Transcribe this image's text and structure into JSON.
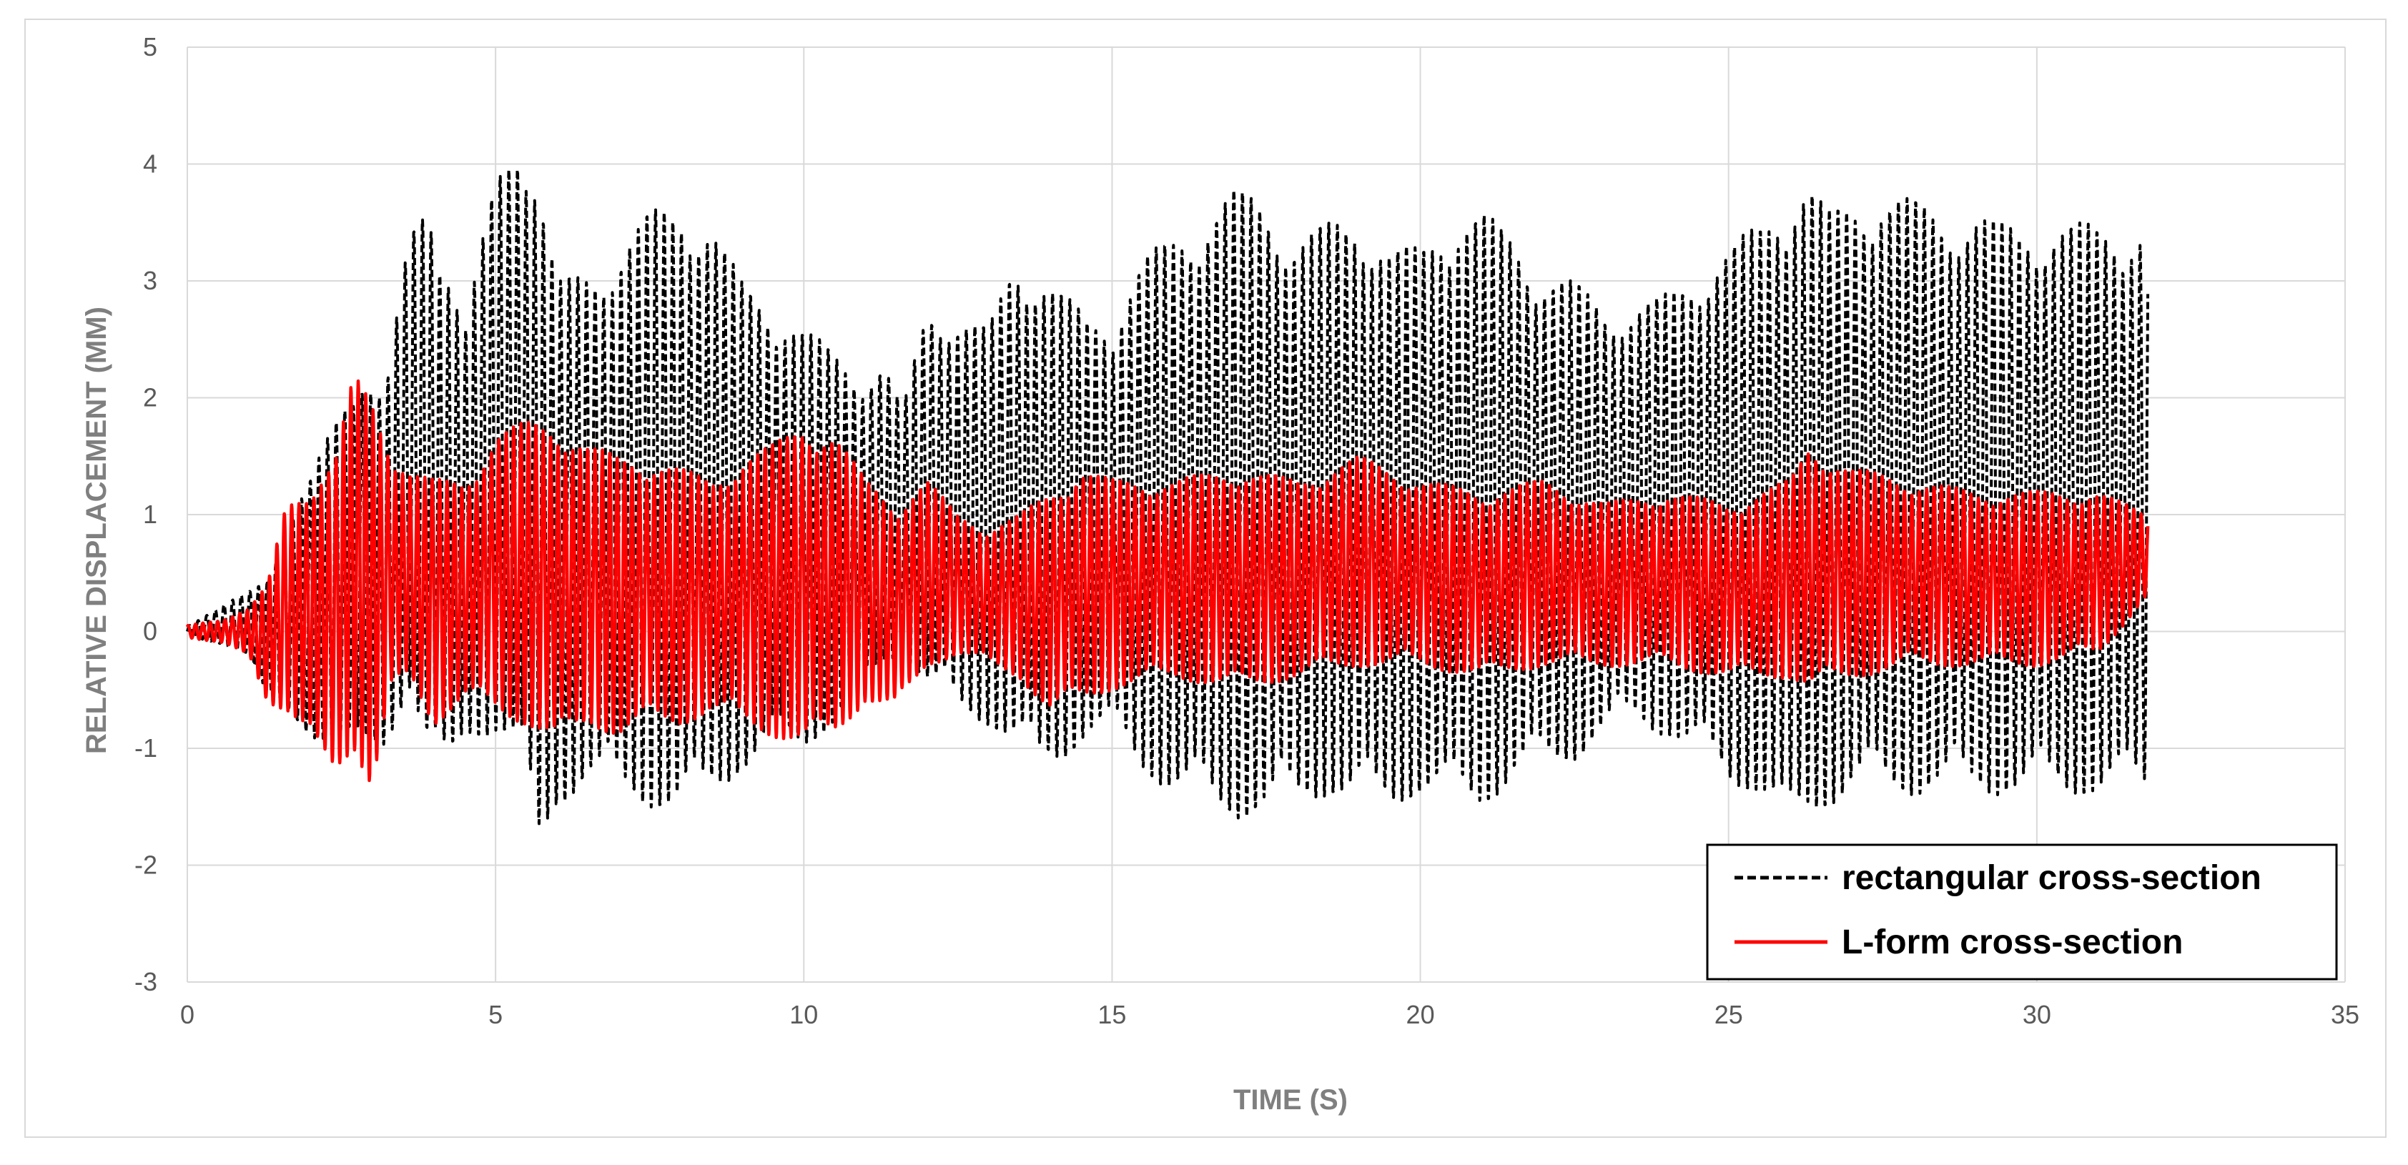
{
  "chart_data": {
    "type": "line",
    "title": "",
    "xlabel": "TIME (S)",
    "ylabel": "RELATIVE DISPLACEMENT (MM)",
    "xlim": [
      0,
      35
    ],
    "ylim": [
      -3,
      5
    ],
    "xticks": [
      0,
      5,
      10,
      15,
      20,
      25,
      30,
      35
    ],
    "yticks": [
      -3,
      -2,
      -1,
      0,
      1,
      2,
      3,
      4,
      5
    ],
    "grid": true,
    "legend_position": "bottom-right",
    "series": [
      {
        "name": "rectangular cross-section",
        "color": "#000000",
        "style": "dashed",
        "period_s": 0.14,
        "envelope": {
          "t": [
            0,
            0.5,
            1.0,
            1.3,
            1.6,
            2.0,
            2.5,
            2.8,
            3.2,
            3.6,
            3.9,
            4.2,
            4.5,
            5.0,
            5.4,
            5.7,
            6.0,
            6.5,
            7.0,
            7.5,
            8.0,
            8.5,
            9.0,
            9.5,
            10.0,
            10.5,
            11.0,
            11.3,
            11.6,
            12.0,
            12.5,
            13.0,
            13.4,
            13.8,
            14.2,
            14.6,
            15.0,
            15.5,
            16.0,
            16.5,
            17.0,
            17.5,
            18.0,
            18.5,
            19.0,
            19.5,
            20.0,
            20.5,
            21.0,
            21.5,
            22.0,
            22.5,
            23.0,
            23.5,
            24.0,
            24.5,
            25.0,
            25.5,
            26.0,
            26.3,
            26.6,
            27.0,
            27.5,
            28.0,
            28.5,
            29.0,
            29.5,
            30.0,
            30.5,
            31.0,
            31.5,
            31.8
          ],
          "max": [
            0.05,
            0.2,
            0.35,
            0.5,
            0.9,
            1.3,
            2.0,
            2.3,
            2.0,
            3.4,
            3.8,
            3.3,
            2.6,
            3.9,
            4.4,
            3.9,
            3.0,
            3.1,
            3.3,
            3.6,
            3.7,
            3.5,
            3.0,
            2.8,
            2.6,
            2.4,
            2.2,
            2.3,
            1.9,
            2.8,
            2.7,
            2.6,
            3.2,
            3.1,
            2.9,
            2.7,
            2.7,
            3.2,
            3.4,
            3.6,
            3.8,
            3.7,
            3.4,
            3.5,
            3.6,
            3.3,
            3.3,
            3.6,
            3.6,
            3.4,
            3.1,
            3.0,
            2.8,
            2.8,
            2.9,
            3.1,
            3.3,
            3.5,
            3.8,
            3.9,
            3.6,
            3.7,
            3.8,
            3.7,
            3.6,
            3.6,
            3.5,
            3.5,
            3.5,
            3.5,
            3.5,
            3.5
          ],
          "min": [
            -0.05,
            -0.1,
            -0.2,
            -0.6,
            -0.7,
            -0.9,
            -1.0,
            -1.1,
            -1.0,
            -0.5,
            -1.1,
            -1.3,
            -0.9,
            -0.9,
            -1.2,
            -1.9,
            -1.5,
            -1.3,
            -1.4,
            -1.5,
            -1.6,
            -1.4,
            -1.2,
            -1.0,
            -1.0,
            -0.8,
            -0.5,
            -0.3,
            -0.2,
            -0.5,
            -0.7,
            -0.8,
            -1.0,
            -1.2,
            -1.1,
            -0.9,
            -0.9,
            -1.2,
            -1.4,
            -1.5,
            -1.6,
            -1.6,
            -1.5,
            -1.4,
            -1.5,
            -1.5,
            -1.4,
            -1.5,
            -1.5,
            -1.3,
            -1.2,
            -1.1,
            -0.9,
            -0.8,
            -0.9,
            -1.1,
            -1.3,
            -1.4,
            -1.8,
            -1.6,
            -1.5,
            -1.4,
            -1.4,
            -1.4,
            -1.4,
            -1.4,
            -1.4,
            -1.4,
            -1.4,
            -1.4,
            -1.4,
            -1.4
          ]
        }
      },
      {
        "name": "L-form cross-section",
        "color": "#ff0000",
        "style": "solid",
        "period_s": 0.12,
        "envelope": {
          "t": [
            0,
            0.5,
            1.0,
            1.3,
            1.6,
            2.0,
            2.4,
            2.7,
            3.0,
            3.3,
            3.6,
            4.0,
            4.5,
            5.0,
            5.5,
            6.0,
            6.5,
            7.0,
            7.5,
            8.0,
            8.5,
            9.0,
            9.5,
            10.0,
            10.5,
            11.0,
            11.5,
            12.0,
            12.5,
            13.0,
            13.5,
            14.0,
            14.5,
            15.0,
            16.0,
            17.0,
            18.0,
            19.0,
            20.0,
            21.0,
            22.0,
            23.0,
            24.0,
            25.0,
            26.0,
            26.3,
            27.0,
            28.0,
            29.0,
            30.0,
            31.0,
            31.8
          ],
          "max": [
            0.05,
            0.1,
            0.2,
            0.4,
            1.1,
            1.3,
            1.5,
            2.2,
            2.0,
            1.6,
            1.4,
            1.3,
            1.3,
            1.7,
            1.8,
            1.8,
            1.6,
            1.5,
            1.5,
            1.4,
            1.3,
            1.5,
            1.6,
            1.8,
            1.7,
            1.3,
            1.1,
            1.3,
            1.0,
            0.9,
            1.0,
            1.2,
            1.4,
            1.3,
            1.3,
            1.4,
            1.3,
            1.5,
            1.3,
            1.2,
            1.3,
            1.1,
            1.2,
            1.1,
            1.3,
            1.6,
            1.4,
            1.3,
            1.2,
            1.2,
            1.2,
            1.0
          ],
          "min": [
            -0.05,
            -0.1,
            -0.2,
            -0.6,
            -0.7,
            -1.0,
            -1.2,
            -1.0,
            -1.4,
            -0.6,
            -0.4,
            -0.8,
            -0.6,
            -0.7,
            -0.8,
            -1.0,
            -0.8,
            -0.9,
            -0.8,
            -0.8,
            -0.7,
            -0.8,
            -0.9,
            -1.0,
            -0.9,
            -0.6,
            -0.7,
            -0.3,
            -0.2,
            -0.3,
            -0.4,
            -0.7,
            -0.6,
            -0.5,
            -0.4,
            -0.5,
            -0.4,
            -0.3,
            -0.3,
            -0.4,
            -0.3,
            -0.3,
            -0.3,
            -0.4,
            -0.4,
            -0.5,
            -0.4,
            -0.3,
            -0.3,
            -0.3,
            -0.2,
            0.3
          ]
        }
      }
    ]
  }
}
